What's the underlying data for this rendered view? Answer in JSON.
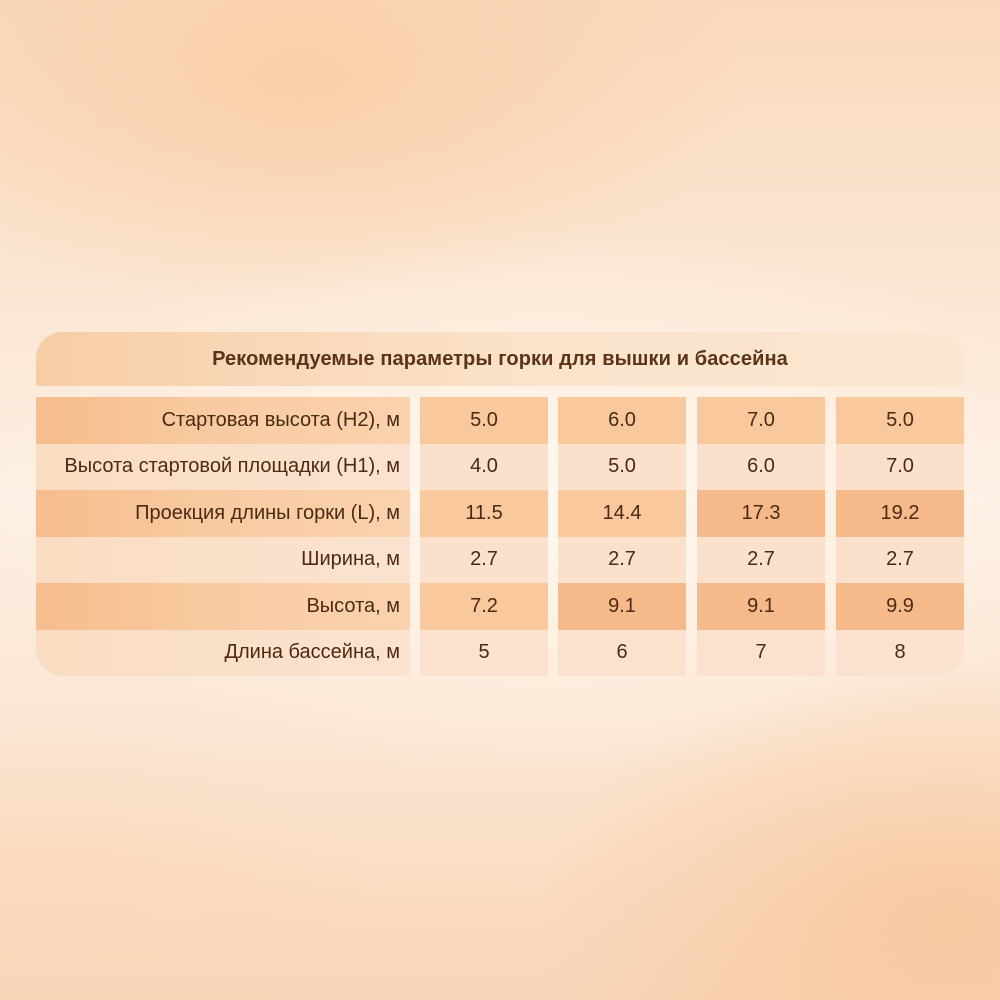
{
  "title": "Рекомендуемые параметры горки для вышки и бассейна",
  "rows": [
    {
      "label": "Стартовая высота (H2), м",
      "values": [
        "5.0",
        "6.0",
        "7.0",
        "5.0"
      ]
    },
    {
      "label": "Высота стартовой площадки (H1), м",
      "values": [
        "4.0",
        "5.0",
        "6.0",
        "7.0"
      ]
    },
    {
      "label": "Проекция длины горки (L), м",
      "values": [
        "11.5",
        "14.4",
        "17.3",
        "19.2"
      ]
    },
    {
      "label": "Ширина, м",
      "values": [
        "2.7",
        "2.7",
        "2.7",
        "2.7"
      ]
    },
    {
      "label": "Высота, м",
      "values": [
        "7.2",
        "9.1",
        "9.1",
        "9.9"
      ]
    },
    {
      "label": "Длина бассейна, м",
      "values": [
        "5",
        "6",
        "7",
        "8"
      ]
    }
  ]
}
